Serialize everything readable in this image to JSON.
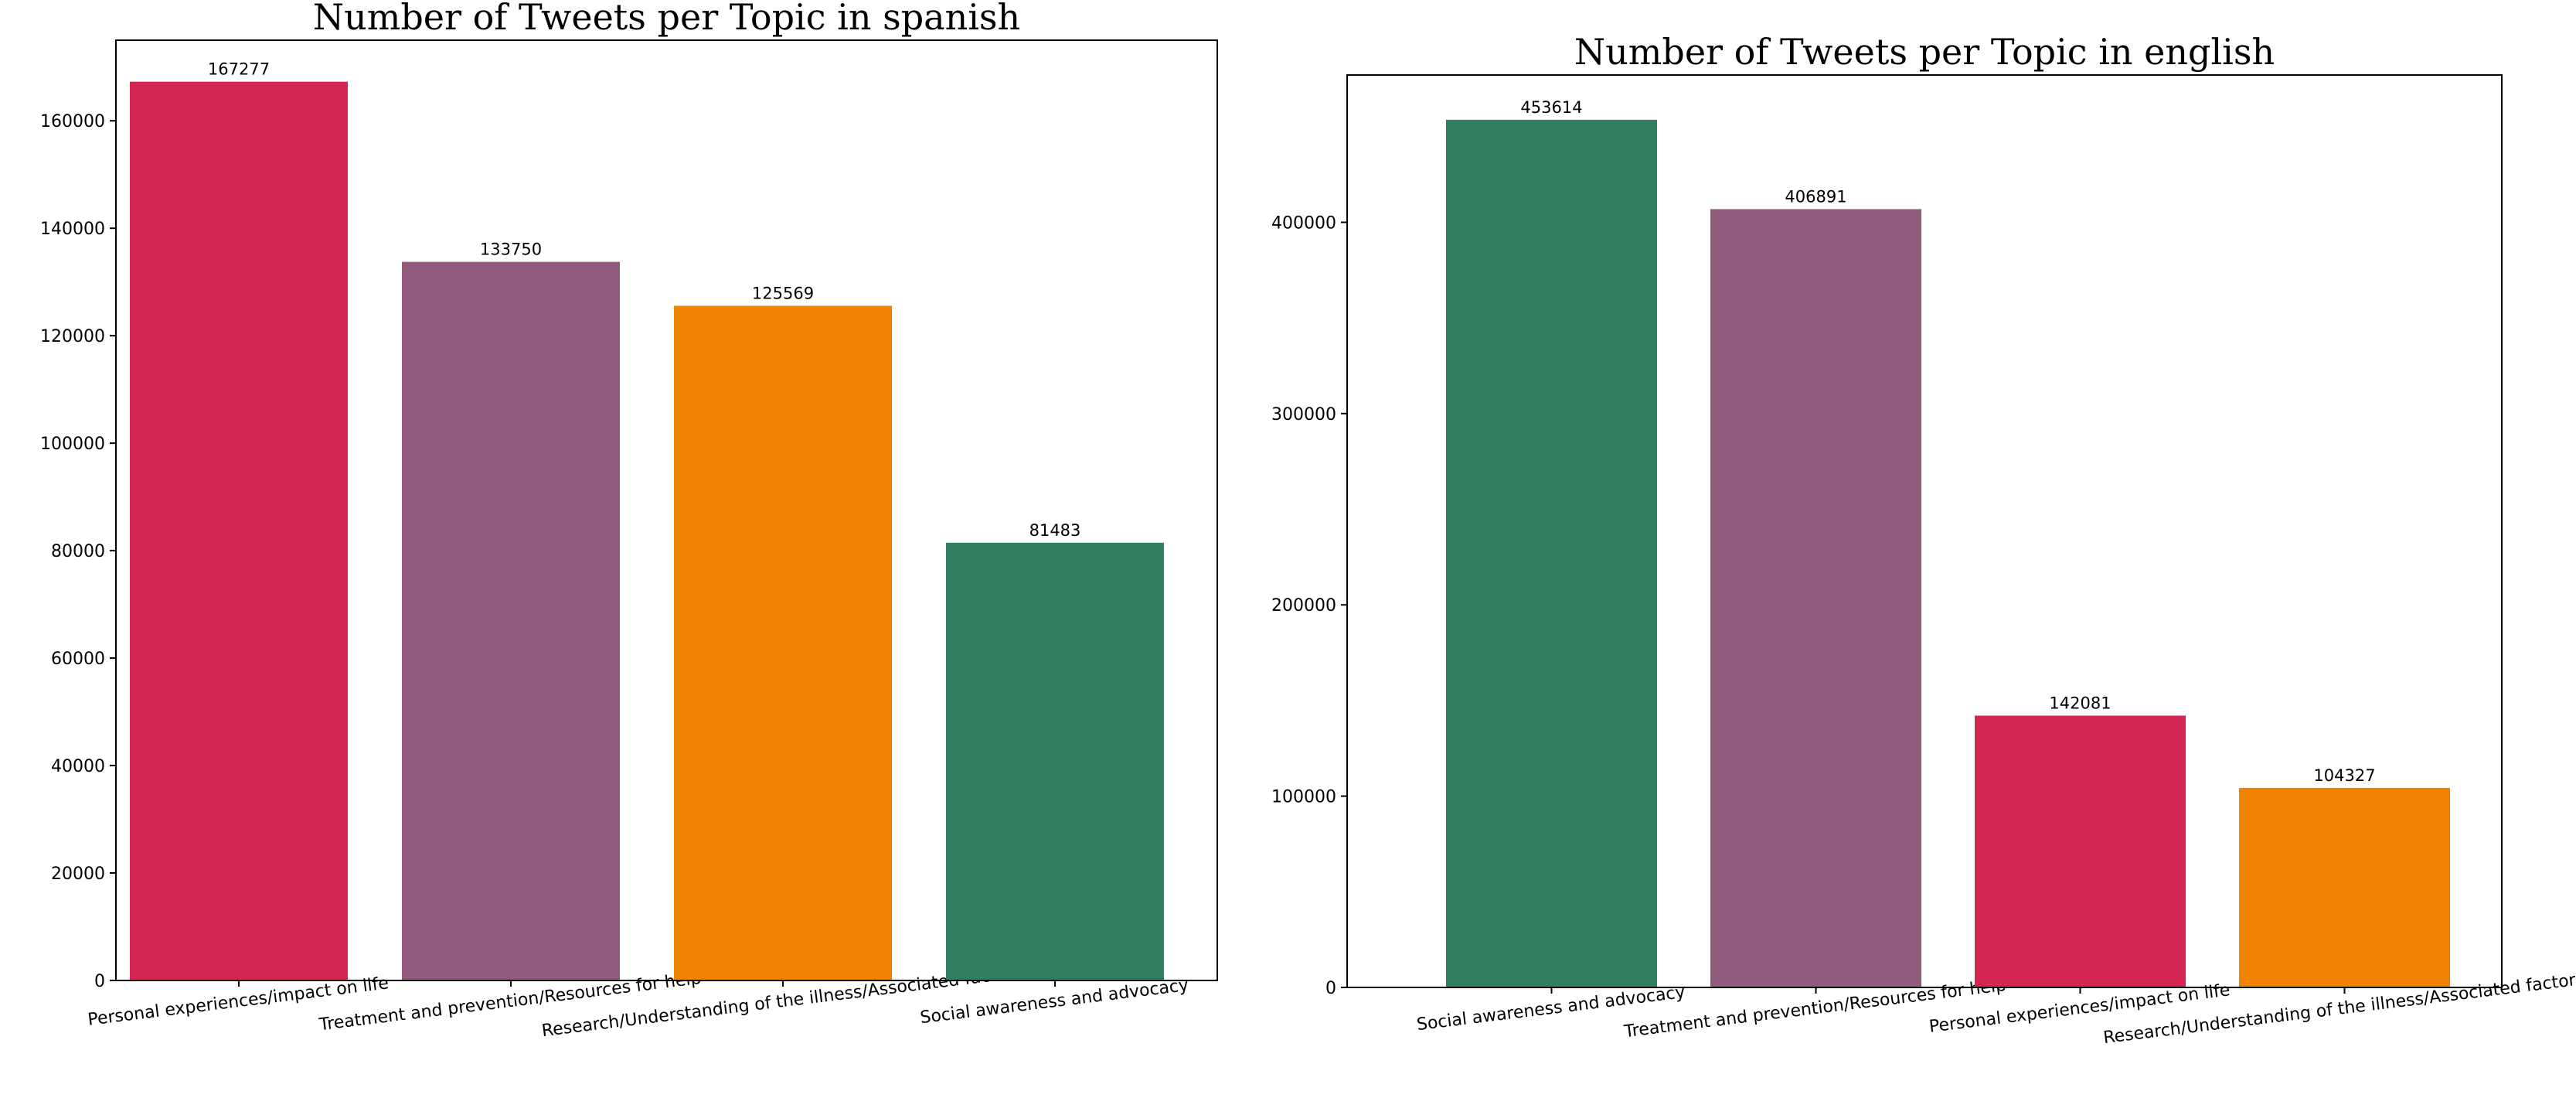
{
  "chart_data": [
    {
      "type": "bar",
      "title": "Number of Tweets per Topic in spanish",
      "xlabel": "",
      "ylabel": "",
      "ylim": [
        0,
        175000
      ],
      "yticks": [
        0,
        20000,
        40000,
        60000,
        80000,
        100000,
        120000,
        140000,
        160000
      ],
      "categories": [
        "Personal experiences/impact on life",
        "Treatment and prevention/Resources for help",
        "Research/Understanding of the illness/Associated factors",
        "Social awareness and advocacy"
      ],
      "values": [
        167277,
        133750,
        125569,
        81483
      ],
      "data_labels": [
        "167277",
        "133750",
        "125569",
        "81483"
      ],
      "colors": [
        "#d42553",
        "#925a7d",
        "#f08400",
        "#307f60"
      ],
      "grid": false,
      "legend": "none"
    },
    {
      "type": "bar",
      "title": "Number of Tweets per Topic in english",
      "xlabel": "",
      "ylabel": "",
      "ylim": [
        0,
        477000
      ],
      "yticks": [
        0,
        100000,
        200000,
        300000,
        400000
      ],
      "categories": [
        "Social awareness and advocacy",
        "Treatment and prevention/Resources for help",
        "Personal experiences/impact on life",
        "Research/Understanding of the illness/Associated factors"
      ],
      "values": [
        453614,
        406891,
        142081,
        104327
      ],
      "data_labels": [
        "453614",
        "406891",
        "142081",
        "104327"
      ],
      "colors": [
        "#307f60",
        "#925a7d",
        "#d42553",
        "#f08400"
      ],
      "grid": false,
      "legend": "none"
    }
  ]
}
